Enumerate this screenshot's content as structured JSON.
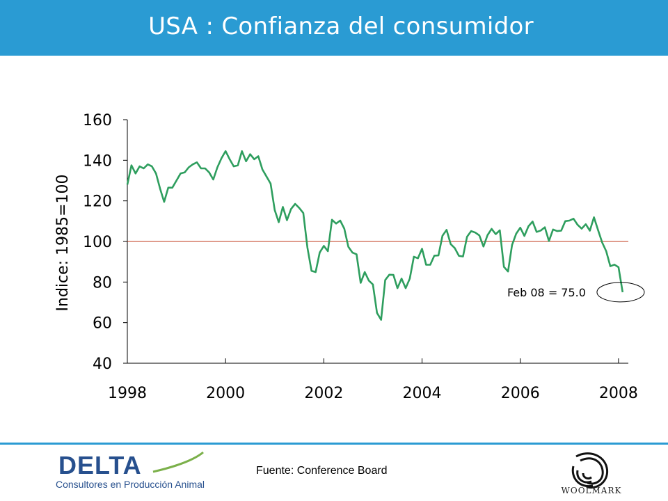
{
  "header": {
    "title": "USA : Confianza del consumidor"
  },
  "footer": {
    "source": "Fuente: Conference Board",
    "delta_name": "DELTA",
    "delta_tagline": "Consultores en Producción Animal",
    "woolmark_name": "WOOLMARK"
  },
  "colors": {
    "series": "#2e9e5e",
    "reference": "#c0391b",
    "header": "#2a9bd3",
    "delta": "#27508e"
  },
  "chart_data": {
    "type": "line",
    "title": "",
    "ylabel": "Indice: 1985=100",
    "xlabel": "",
    "xlim": [
      1998,
      2008.2
    ],
    "ylim": [
      40,
      160
    ],
    "x_ticks": [
      "1998",
      "2000",
      "2002",
      "2004",
      "2006",
      "2008"
    ],
    "y_ticks": [
      "40",
      "60",
      "80",
      "100",
      "120",
      "140",
      "160"
    ],
    "grid": false,
    "reference_line": {
      "y": 100
    },
    "annotation": {
      "text": "Feb 08 = 75.0",
      "x": 2008.1,
      "y": 75.0
    },
    "series": [
      {
        "start": "1998-01",
        "frequency": "monthly",
        "values": [
          128,
          137.5,
          133.5,
          137,
          136,
          138,
          137,
          133.5,
          126,
          119.5,
          126.5,
          126.5,
          130,
          133.5,
          134,
          136.5,
          138,
          139,
          136,
          136,
          134,
          130.5,
          136.5,
          141,
          144.5,
          140.5,
          137,
          137.5,
          144.5,
          139.5,
          143,
          140.5,
          142,
          135.5,
          132,
          128.5,
          115.5,
          109.5,
          117,
          110.5,
          116,
          118.5,
          116.5,
          114,
          97,
          85.5,
          84.9,
          94.6,
          97.8,
          95.2,
          110.7,
          108.8,
          110.3,
          106.3,
          97.4,
          94.5,
          93.7,
          79.6,
          84.9,
          80.7,
          78.8,
          64.8,
          61.4,
          81,
          83.6,
          83.5,
          77,
          81.7,
          77,
          81.7,
          92.5,
          91.7,
          96.4,
          88.5,
          88.5,
          93,
          93.1,
          102.8,
          105.7,
          98.7,
          96.7,
          92.9,
          92.6,
          102.3,
          105.1,
          104.4,
          103,
          97.5,
          103.1,
          106.2,
          103.6,
          105.5,
          87.5,
          85.2,
          98.3,
          103.8,
          106.8,
          102.7,
          107.5,
          109.8,
          104.7,
          105.4,
          107,
          100.2,
          105.9,
          105.1,
          105.3,
          110,
          110.3,
          111.2,
          108.2,
          106.3,
          108.5,
          105.3,
          111.9,
          105.6,
          99.5,
          95.2,
          87.8,
          88.6,
          87.3,
          75.0
        ]
      }
    ]
  }
}
